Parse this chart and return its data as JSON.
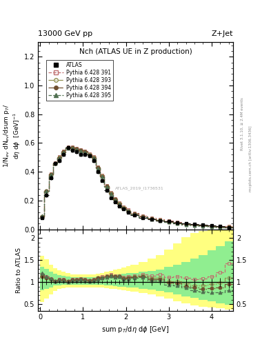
{
  "title_top": "13000 GeV pp",
  "title_top_right": "Z+Jet",
  "plot_title": "Nch (ATLAS UE in Z production)",
  "ylabel_main": "1/N$_{ev}$ dN$_{ev}$/dsum p$_T$/d$\\eta$ d$\\phi$  [GeV]$^{-1}$",
  "ylabel_ratio": "Ratio to ATLAS",
  "xlabel": "sum p$_T$/d$\\eta$ d$\\phi$ [GeV]",
  "watermark": "ATLAS_2019_I1736531",
  "right_label": "Rivet 3.1.10, ≥ 2.4M events",
  "right_label2": "mcplots.cern.ch [arXiv:1306.3436]",
  "xlim": [
    -0.05,
    4.5
  ],
  "ylim_main": [
    0,
    1.3
  ],
  "ylim_ratio": [
    0.35,
    2.2
  ],
  "atlas_x": [
    0.05,
    0.15,
    0.25,
    0.35,
    0.45,
    0.55,
    0.65,
    0.75,
    0.85,
    0.95,
    1.05,
    1.15,
    1.25,
    1.35,
    1.45,
    1.55,
    1.65,
    1.75,
    1.85,
    1.95,
    2.05,
    2.2,
    2.4,
    2.6,
    2.8,
    3.0,
    3.2,
    3.4,
    3.6,
    3.8,
    4.0,
    4.2,
    4.4
  ],
  "atlas_y": [
    0.08,
    0.24,
    0.36,
    0.46,
    0.48,
    0.52,
    0.57,
    0.55,
    0.54,
    0.52,
    0.52,
    0.51,
    0.48,
    0.4,
    0.34,
    0.27,
    0.22,
    0.19,
    0.16,
    0.14,
    0.12,
    0.1,
    0.08,
    0.07,
    0.06,
    0.055,
    0.045,
    0.04,
    0.035,
    0.03,
    0.025,
    0.02,
    0.015
  ],
  "atlas_yerr": [
    0.012,
    0.015,
    0.015,
    0.015,
    0.015,
    0.015,
    0.015,
    0.015,
    0.015,
    0.015,
    0.015,
    0.015,
    0.015,
    0.015,
    0.012,
    0.012,
    0.01,
    0.01,
    0.008,
    0.008,
    0.007,
    0.006,
    0.005,
    0.005,
    0.004,
    0.004,
    0.003,
    0.003,
    0.003,
    0.002,
    0.002,
    0.002,
    0.002
  ],
  "py391_y": [
    0.09,
    0.265,
    0.385,
    0.463,
    0.505,
    0.545,
    0.575,
    0.575,
    0.565,
    0.555,
    0.545,
    0.525,
    0.505,
    0.435,
    0.375,
    0.305,
    0.255,
    0.215,
    0.185,
    0.155,
    0.135,
    0.115,
    0.095,
    0.08,
    0.07,
    0.06,
    0.05,
    0.043,
    0.037,
    0.032,
    0.028,
    0.024,
    0.021
  ],
  "py393_y": [
    0.09,
    0.265,
    0.383,
    0.46,
    0.5,
    0.54,
    0.57,
    0.57,
    0.56,
    0.55,
    0.54,
    0.52,
    0.5,
    0.43,
    0.37,
    0.3,
    0.25,
    0.21,
    0.18,
    0.15,
    0.13,
    0.11,
    0.09,
    0.075,
    0.065,
    0.055,
    0.045,
    0.038,
    0.032,
    0.027,
    0.023,
    0.019,
    0.016
  ],
  "py394_y": [
    0.09,
    0.265,
    0.383,
    0.46,
    0.498,
    0.538,
    0.568,
    0.568,
    0.558,
    0.548,
    0.538,
    0.518,
    0.498,
    0.428,
    0.368,
    0.298,
    0.248,
    0.208,
    0.178,
    0.148,
    0.128,
    0.108,
    0.088,
    0.073,
    0.063,
    0.053,
    0.043,
    0.036,
    0.03,
    0.025,
    0.021,
    0.017,
    0.014
  ],
  "py395_y": [
    0.095,
    0.265,
    0.382,
    0.458,
    0.496,
    0.536,
    0.566,
    0.566,
    0.556,
    0.546,
    0.536,
    0.516,
    0.496,
    0.426,
    0.366,
    0.296,
    0.246,
    0.206,
    0.176,
    0.146,
    0.126,
    0.106,
    0.086,
    0.071,
    0.061,
    0.051,
    0.041,
    0.034,
    0.028,
    0.023,
    0.019,
    0.015,
    0.012
  ],
  "ratio391_y": [
    1.18,
    1.12,
    1.08,
    1.02,
    1.06,
    1.06,
    1.02,
    1.06,
    1.06,
    1.08,
    1.06,
    1.04,
    1.06,
    1.1,
    1.12,
    1.14,
    1.17,
    1.14,
    1.15,
    1.11,
    1.12,
    1.15,
    1.18,
    1.15,
    1.17,
    1.11,
    1.12,
    1.09,
    1.07,
    1.08,
    1.13,
    1.22,
    1.42
  ],
  "ratio393_y": [
    1.13,
    1.1,
    1.07,
    1.01,
    1.05,
    1.05,
    1.01,
    1.05,
    1.05,
    1.07,
    1.05,
    1.03,
    1.05,
    1.09,
    1.1,
    1.12,
    1.15,
    1.12,
    1.14,
    1.09,
    1.1,
    1.12,
    1.14,
    1.09,
    1.1,
    1.02,
    1.02,
    0.97,
    0.93,
    0.92,
    0.95,
    0.98,
    1.1
  ],
  "ratio394_y": [
    1.13,
    1.1,
    1.07,
    1.01,
    1.05,
    1.05,
    1.01,
    1.05,
    1.05,
    1.07,
    1.05,
    1.03,
    1.05,
    1.09,
    1.1,
    1.12,
    1.14,
    1.12,
    1.13,
    1.08,
    1.09,
    1.11,
    1.12,
    1.06,
    1.07,
    0.98,
    0.97,
    0.91,
    0.87,
    0.85,
    0.86,
    0.87,
    0.95
  ],
  "ratio395_y": [
    1.2,
    1.12,
    1.08,
    1.01,
    1.05,
    1.04,
    1.0,
    1.04,
    1.04,
    1.06,
    1.04,
    1.02,
    1.04,
    1.07,
    1.09,
    1.11,
    1.14,
    1.11,
    1.12,
    1.07,
    1.07,
    1.09,
    1.11,
    1.03,
    1.03,
    0.94,
    0.93,
    0.87,
    0.81,
    0.78,
    0.77,
    0.76,
    0.82
  ],
  "green_band_lo": [
    0.82,
    0.84,
    0.88,
    0.92,
    0.93,
    0.94,
    0.94,
    0.94,
    0.94,
    0.94,
    0.94,
    0.94,
    0.94,
    0.94,
    0.94,
    0.93,
    0.92,
    0.91,
    0.9,
    0.89,
    0.88,
    0.87,
    0.85,
    0.83,
    0.8,
    0.76,
    0.72,
    0.68,
    0.64,
    0.6,
    0.56,
    0.52,
    0.49
  ],
  "green_band_hi": [
    1.35,
    1.3,
    1.24,
    1.19,
    1.16,
    1.14,
    1.12,
    1.11,
    1.11,
    1.11,
    1.11,
    1.11,
    1.11,
    1.12,
    1.12,
    1.13,
    1.15,
    1.16,
    1.17,
    1.19,
    1.2,
    1.21,
    1.23,
    1.26,
    1.29,
    1.34,
    1.4,
    1.46,
    1.54,
    1.62,
    1.72,
    1.82,
    1.92
  ],
  "yellow_band_lo": [
    0.55,
    0.62,
    0.72,
    0.8,
    0.84,
    0.86,
    0.87,
    0.87,
    0.87,
    0.87,
    0.87,
    0.87,
    0.87,
    0.87,
    0.87,
    0.86,
    0.85,
    0.84,
    0.83,
    0.82,
    0.8,
    0.78,
    0.75,
    0.72,
    0.68,
    0.62,
    0.56,
    0.51,
    0.47,
    0.44,
    0.42,
    0.4,
    0.38
  ],
  "yellow_band_hi": [
    1.6,
    1.52,
    1.4,
    1.32,
    1.27,
    1.24,
    1.2,
    1.18,
    1.18,
    1.18,
    1.18,
    1.18,
    1.18,
    1.19,
    1.21,
    1.23,
    1.26,
    1.28,
    1.3,
    1.33,
    1.36,
    1.4,
    1.46,
    1.53,
    1.62,
    1.74,
    1.88,
    2.02,
    2.12,
    2.17,
    2.18,
    2.18,
    2.18
  ],
  "color_391": "#c07070",
  "color_393": "#909050",
  "color_394": "#705030",
  "color_395": "#507050",
  "color_atlas": "black",
  "green_color": "#90ee90",
  "yellow_color": "#ffff80",
  "bin_edges": [
    0.0,
    0.1,
    0.2,
    0.3,
    0.4,
    0.5,
    0.6,
    0.7,
    0.8,
    0.9,
    1.0,
    1.1,
    1.2,
    1.3,
    1.4,
    1.5,
    1.6,
    1.7,
    1.8,
    1.9,
    2.0,
    2.1,
    2.3,
    2.5,
    2.7,
    2.9,
    3.1,
    3.3,
    3.5,
    3.7,
    3.9,
    4.1,
    4.3,
    4.5
  ]
}
